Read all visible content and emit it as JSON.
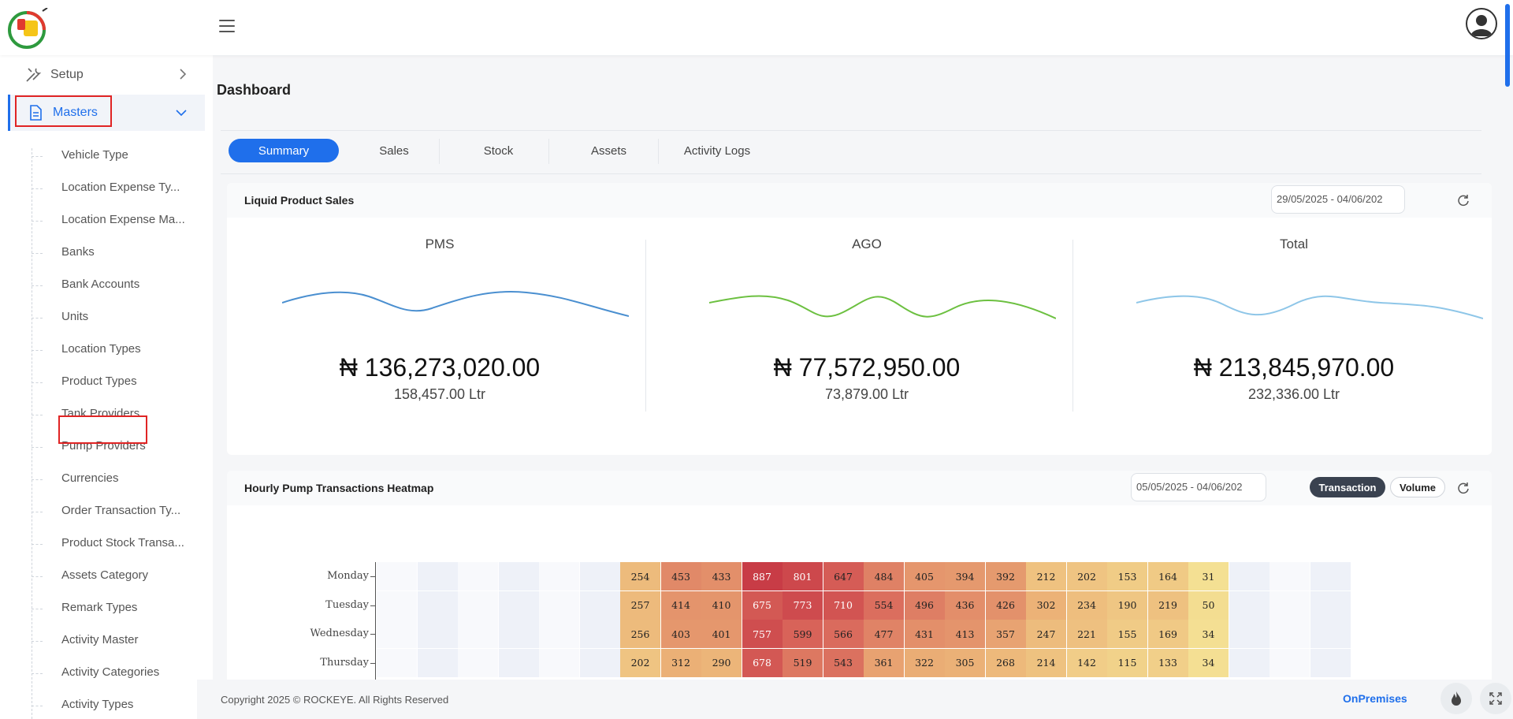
{
  "header": {
    "logo": "app-logo",
    "menu_icon": "hamburger-icon",
    "avatar_icon": "user-avatar-icon"
  },
  "sidebar": {
    "setup_label": "Setup",
    "masters_label": "Masters",
    "items": [
      {
        "label": "Vehicle Type"
      },
      {
        "label": "Location Expense Ty..."
      },
      {
        "label": "Location Expense Ma..."
      },
      {
        "label": "Banks"
      },
      {
        "label": "Bank Accounts"
      },
      {
        "label": "Units"
      },
      {
        "label": "Location Types"
      },
      {
        "label": "Product Types"
      },
      {
        "label": "Tank Providers"
      },
      {
        "label": "Pump Providers"
      },
      {
        "label": "Currencies"
      },
      {
        "label": "Order Transaction Ty..."
      },
      {
        "label": "Product Stock Transa..."
      },
      {
        "label": "Assets Category"
      },
      {
        "label": "Remark Types"
      },
      {
        "label": "Activity Master"
      },
      {
        "label": "Activity Categories"
      },
      {
        "label": "Activity Types"
      }
    ]
  },
  "page": {
    "title": "Dashboard"
  },
  "tabs": [
    "Summary",
    "Sales",
    "Stock",
    "Assets",
    "Activity Logs"
  ],
  "liquid_sales": {
    "title": "Liquid Product Sales",
    "date_range": "29/05/2025 - 04/06/202",
    "metrics": [
      {
        "name": "PMS",
        "amount": "₦ 136,273,020.00",
        "volume": "158,457.00 Ltr",
        "color": "#4a8fd0"
      },
      {
        "name": "AGO",
        "amount": "₦ 77,572,950.00",
        "volume": "73,879.00 Ltr",
        "color": "#6cc040"
      },
      {
        "name": "Total",
        "amount": "₦ 213,845,970.00",
        "volume": "232,336.00 Ltr",
        "color": "#8ec6e8"
      }
    ]
  },
  "heatmap": {
    "title": "Hourly Pump Transactions Heatmap",
    "date_range": "05/05/2025 - 04/06/202",
    "transaction_label": "Transaction",
    "volume_label": "Volume",
    "rows": [
      "Monday",
      "Tuesday",
      "Wednesday",
      "Thursday"
    ],
    "values": [
      [
        null,
        null,
        null,
        null,
        null,
        null,
        254,
        453,
        433,
        887,
        801,
        647,
        484,
        405,
        394,
        392,
        212,
        202,
        153,
        164,
        31,
        null,
        null,
        null
      ],
      [
        null,
        null,
        null,
        null,
        null,
        null,
        257,
        414,
        410,
        675,
        773,
        710,
        554,
        496,
        436,
        426,
        302,
        234,
        190,
        219,
        50,
        null,
        null,
        null
      ],
      [
        null,
        null,
        null,
        null,
        null,
        null,
        256,
        403,
        401,
        757,
        599,
        566,
        477,
        431,
        413,
        357,
        247,
        221,
        155,
        169,
        34,
        null,
        null,
        null
      ],
      [
        null,
        null,
        null,
        null,
        null,
        null,
        202,
        312,
        290,
        678,
        519,
        543,
        361,
        322,
        305,
        268,
        214,
        142,
        115,
        133,
        34,
        null,
        null,
        null
      ]
    ]
  },
  "footer": {
    "copyright": "Copyright 2025 © ROCKEYE. All Rights Reserved",
    "mode": "OnPremises"
  }
}
